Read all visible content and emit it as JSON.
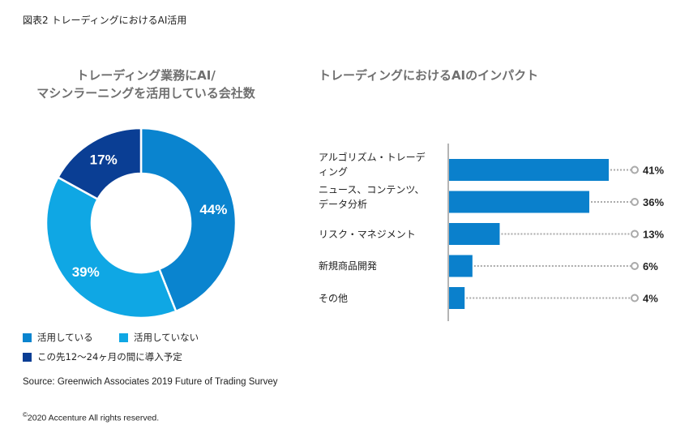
{
  "figure_title": "図表2 トレーディングにおけるAI活用",
  "source": "Source: Greenwich Associates 2019 Future of Trading Survey",
  "copyright_symbol": "©",
  "copyright": "2020 Accenture All rights reserved.",
  "colors": {
    "using": "#0a84cf",
    "not_using": "#0fa7e4",
    "planned": "#0a3e94",
    "bar": "#0a80cc",
    "axis": "#b4b4b4",
    "dots": "#aaaaaa",
    "title_gray": "#6f6f6f"
  },
  "chart_data": [
    {
      "type": "pie",
      "title_lines": [
        "トレーディング業務にAI/",
        "マシンラーニングを活用している会社数"
      ],
      "slices": [
        {
          "key": "using",
          "label": "活用している",
          "value": 44,
          "value_label": "44%"
        },
        {
          "key": "not_using",
          "label": "活用していない",
          "value": 39,
          "value_label": "39%"
        },
        {
          "key": "planned",
          "label": "この先12〜24ヶ月の間に導入予定",
          "value": 17,
          "value_label": "17%"
        }
      ],
      "donut": true,
      "start_angle": "12 o'clock",
      "direction": "clockwise",
      "legend_position": "bottom-left"
    },
    {
      "type": "bar",
      "orientation": "horizontal",
      "title": "トレーディングにおけるAIのインパクト",
      "categories": [
        [
          "アルゴリズム・トレーデ",
          "ィング"
        ],
        [
          "ニュース、コンテンツ、",
          "データ分析"
        ],
        [
          "リスク・マネジメント"
        ],
        [
          "新規商品開発"
        ],
        [
          "その他"
        ]
      ],
      "values": [
        41,
        36,
        13,
        6,
        4
      ],
      "value_labels": [
        "41%",
        "36%",
        "13%",
        "6%",
        "4%"
      ],
      "xlim": [
        0,
        50
      ],
      "grid": false
    }
  ]
}
